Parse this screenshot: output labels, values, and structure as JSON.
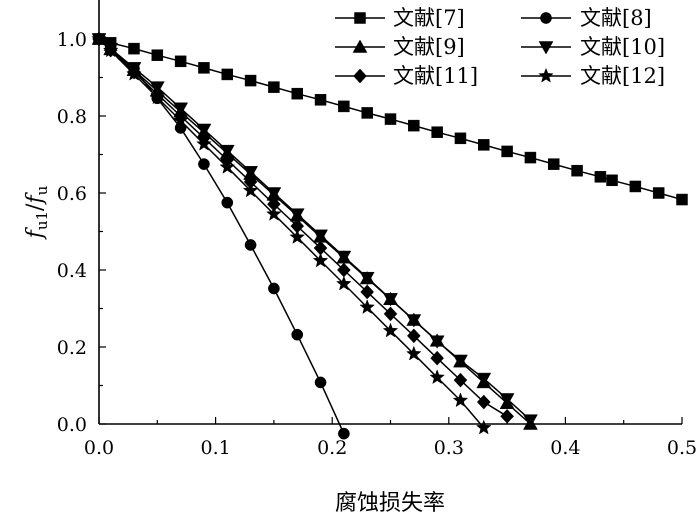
{
  "chart_data": {
    "type": "line",
    "xlabel": "腐蚀损失率",
    "ylabel": "f_u1/f_u",
    "ylabel_main": "f",
    "ylabel_sub1": "u1",
    "ylabel_slash": "/",
    "ylabel_sub2": "u",
    "xlim": [
      0,
      0.5
    ],
    "ylim": [
      0,
      1.1
    ],
    "xticks": [
      0.0,
      0.1,
      0.2,
      0.3,
      0.4,
      0.5
    ],
    "yticks": [
      0.0,
      0.2,
      0.4,
      0.6,
      0.8,
      1.0
    ],
    "xtick_labels": [
      "0.0",
      "0.1",
      "0.2",
      "0.3",
      "0.4",
      "0.5"
    ],
    "ytick_labels": [
      "0.0",
      "0.2",
      "0.4",
      "0.6",
      "0.8",
      "1.0"
    ],
    "legend_position": "top-right",
    "series": [
      {
        "name": "文献[7]",
        "marker": "square",
        "x": [
          0.0,
          0.01,
          0.03,
          0.05,
          0.07,
          0.09,
          0.11,
          0.13,
          0.15,
          0.17,
          0.19,
          0.21,
          0.23,
          0.25,
          0.27,
          0.29,
          0.31,
          0.33,
          0.35,
          0.37,
          0.39,
          0.41,
          0.43,
          0.44,
          0.46,
          0.48,
          0.5
        ],
        "y": [
          1.0,
          0.99,
          0.975,
          0.958,
          0.942,
          0.925,
          0.908,
          0.892,
          0.875,
          0.858,
          0.842,
          0.825,
          0.808,
          0.792,
          0.775,
          0.758,
          0.742,
          0.725,
          0.708,
          0.692,
          0.675,
          0.658,
          0.642,
          0.633,
          0.617,
          0.6,
          0.583
        ]
      },
      {
        "name": "文献[8]",
        "marker": "circle",
        "x": [
          0.0,
          0.03,
          0.05,
          0.07,
          0.09,
          0.11,
          0.13,
          0.15,
          0.17,
          0.19,
          0.21
        ],
        "y": [
          1.0,
          0.923,
          0.846,
          0.769,
          0.675,
          0.575,
          0.465,
          0.352,
          0.232,
          0.108,
          -0.025
        ]
      },
      {
        "name": "文献[9]",
        "marker": "triangle-up",
        "x": [
          0.0,
          0.01,
          0.03,
          0.05,
          0.07,
          0.09,
          0.11,
          0.13,
          0.15,
          0.17,
          0.19,
          0.21,
          0.23,
          0.25,
          0.27,
          0.29,
          0.31,
          0.33,
          0.35,
          0.37
        ],
        "y": [
          1.0,
          0.973,
          0.919,
          0.865,
          0.811,
          0.757,
          0.703,
          0.649,
          0.595,
          0.541,
          0.486,
          0.432,
          0.378,
          0.324,
          0.27,
          0.216,
          0.162,
          0.108,
          0.054,
          0.0
        ]
      },
      {
        "name": "文献[10]",
        "marker": "triangle-down",
        "x": [
          0.0,
          0.01,
          0.03,
          0.05,
          0.07,
          0.09,
          0.11,
          0.13,
          0.15,
          0.17,
          0.19,
          0.21,
          0.23,
          0.25,
          0.27,
          0.29,
          0.31,
          0.33,
          0.35,
          0.37
        ],
        "y": [
          1.0,
          0.975,
          0.925,
          0.875,
          0.82,
          0.765,
          0.71,
          0.655,
          0.6,
          0.545,
          0.49,
          0.435,
          0.38,
          0.325,
          0.27,
          0.215,
          0.165,
          0.118,
          0.065,
          0.01
        ]
      },
      {
        "name": "文献[11]",
        "marker": "diamond",
        "x": [
          0.0,
          0.01,
          0.03,
          0.05,
          0.07,
          0.09,
          0.11,
          0.13,
          0.15,
          0.17,
          0.19,
          0.21,
          0.23,
          0.25,
          0.27,
          0.29,
          0.31,
          0.33,
          0.35
        ],
        "y": [
          1.0,
          0.971,
          0.914,
          0.857,
          0.8,
          0.743,
          0.686,
          0.629,
          0.571,
          0.514,
          0.457,
          0.4,
          0.343,
          0.286,
          0.229,
          0.171,
          0.114,
          0.057,
          0.02
        ]
      },
      {
        "name": "文献[12]",
        "marker": "star",
        "x": [
          0.0,
          0.01,
          0.03,
          0.05,
          0.07,
          0.09,
          0.11,
          0.13,
          0.15,
          0.17,
          0.19,
          0.21,
          0.23,
          0.25,
          0.27,
          0.29,
          0.31,
          0.33
        ],
        "y": [
          1.0,
          0.97,
          0.909,
          0.848,
          0.788,
          0.727,
          0.667,
          0.606,
          0.545,
          0.485,
          0.424,
          0.364,
          0.303,
          0.242,
          0.182,
          0.121,
          0.061,
          -0.01
        ]
      }
    ]
  }
}
